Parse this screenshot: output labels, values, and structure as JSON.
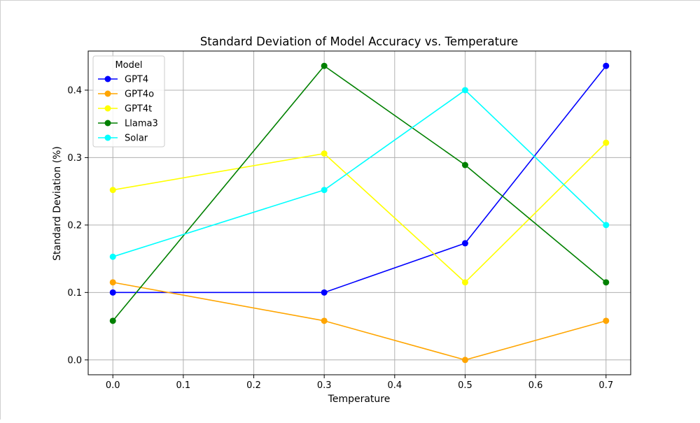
{
  "chart_data": {
    "type": "line",
    "title": "Standard Deviation of Model Accuracy vs. Temperature",
    "xlabel": "Temperature",
    "ylabel": "Standard Deviation (%)",
    "x": [
      0.0,
      0.3,
      0.5,
      0.7
    ],
    "xlim": [
      -0.035,
      0.735
    ],
    "ylim": [
      -0.022,
      0.458
    ],
    "x_ticks": [
      0.0,
      0.1,
      0.2,
      0.3,
      0.4,
      0.5,
      0.6,
      0.7
    ],
    "x_tick_labels": [
      "0.0",
      "0.1",
      "0.2",
      "0.3",
      "0.4",
      "0.5",
      "0.6",
      "0.7"
    ],
    "y_ticks": [
      0.0,
      0.1,
      0.2,
      0.3,
      0.4
    ],
    "y_tick_labels": [
      "0.0",
      "0.1",
      "0.2",
      "0.3",
      "0.4"
    ],
    "grid": true,
    "legend_title": "Model",
    "legend_position": "top-left",
    "series": [
      {
        "name": "GPT4",
        "color": "#0000ff",
        "values": [
          0.1,
          0.1,
          0.173,
          0.436
        ]
      },
      {
        "name": "GPT4o",
        "color": "#ffa500",
        "values": [
          0.115,
          0.058,
          0.0,
          0.058
        ]
      },
      {
        "name": "GPT4t",
        "color": "#ffff00",
        "values": [
          0.252,
          0.306,
          0.115,
          0.322
        ]
      },
      {
        "name": "Llama3",
        "color": "#008000",
        "values": [
          0.058,
          0.436,
          0.289,
          0.115
        ]
      },
      {
        "name": "Solar",
        "color": "#00ffff",
        "values": [
          0.153,
          0.252,
          0.4,
          0.2
        ]
      }
    ]
  }
}
